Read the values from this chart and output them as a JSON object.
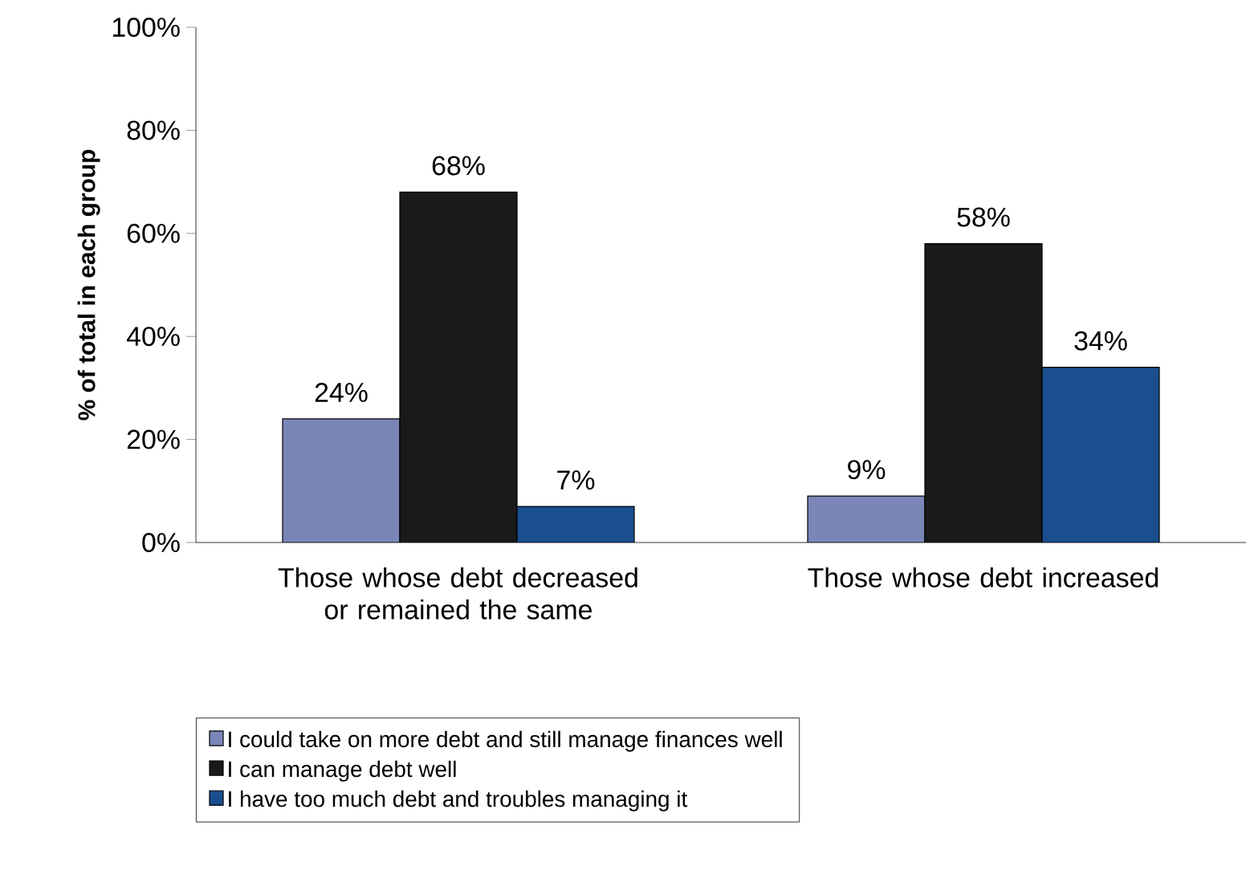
{
  "chart_data": {
    "type": "bar",
    "ylabel": "% of total in each group",
    "categories": [
      "Those whose debt decreased or remained the same",
      "Those whose debt increased"
    ],
    "series": [
      {
        "name": "I could take on more debt and still manage finances well",
        "color": "#7b86b8",
        "values": [
          24,
          9
        ],
        "value_labels": [
          "24%",
          "9%"
        ]
      },
      {
        "name": "I can manage debt well",
        "color": "#1a1a1a",
        "values": [
          68,
          58
        ],
        "value_labels": [
          "68%",
          "58%"
        ]
      },
      {
        "name": "I have too much debt and troubles managing it",
        "color": "#1a4f8f",
        "values": [
          7,
          34
        ],
        "value_labels": [
          "7%",
          "34%"
        ]
      }
    ],
    "ylim": [
      0,
      100
    ],
    "yticks": [
      {
        "value": 0,
        "label": "0%"
      },
      {
        "value": 20,
        "label": "20%"
      },
      {
        "value": 40,
        "label": "40%"
      },
      {
        "value": 60,
        "label": "60%"
      },
      {
        "value": 80,
        "label": "80%"
      },
      {
        "value": 100,
        "label": "100%"
      }
    ],
    "grid": false,
    "legend": "bottom"
  }
}
